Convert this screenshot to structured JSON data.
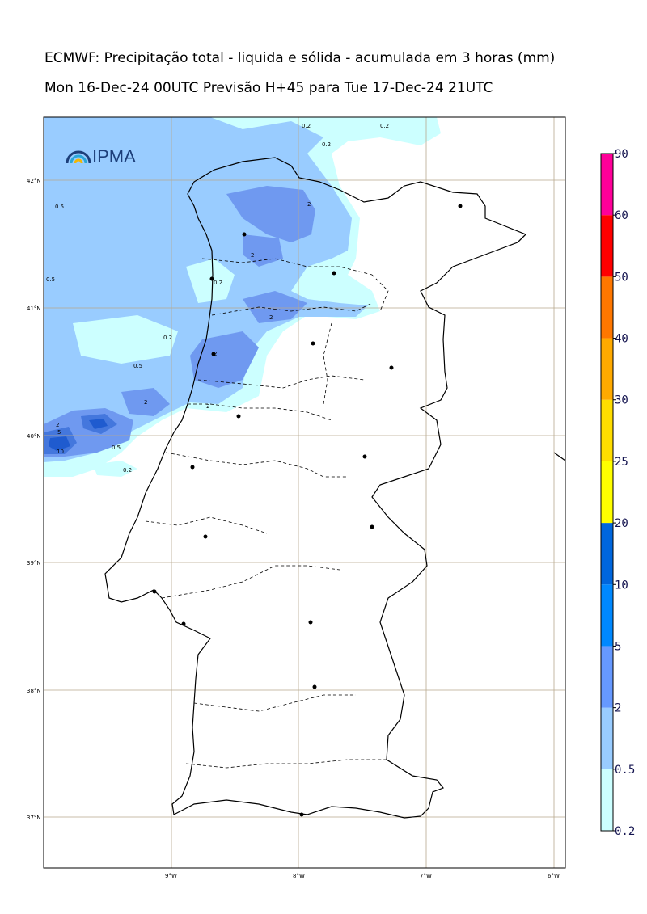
{
  "header": {
    "title_line1": "ECMWF: Precipitação total - liquida e sólida - acumulada em 3 horas (mm)",
    "title_line2": "Mon 16-Dec-24 00UTC Previsão H+45 para Tue 17-Dec-24 21UTC"
  },
  "logo": {
    "text": "IPMA"
  },
  "lat_labels": [
    "42°N",
    "41°N",
    "40°N",
    "39°N",
    "38°N",
    "37°N"
  ],
  "lon_labels": [
    "9°W",
    "8°W",
    "7°W",
    "6°W"
  ],
  "contour_labels": [
    "0.2",
    "0.2",
    "0.5",
    "0.2",
    "2",
    "2",
    "0.5",
    "2",
    "2",
    "0.2",
    "0.2",
    "0.5",
    "2",
    "2",
    "2",
    "5",
    "10",
    "0.5",
    "0.2"
  ],
  "colorbar": {
    "ticks": [
      "0.2",
      "0.5",
      "2",
      "5",
      "10",
      "20",
      "25",
      "30",
      "40",
      "50",
      "60",
      "90"
    ],
    "colors": [
      "#ccffff",
      "#99ccff",
      "#6699ff",
      "#0088ff",
      "#0066dd",
      "#ffff00",
      "#ffdd00",
      "#ffaa00",
      "#ff7700",
      "#ff0000",
      "#ff0099"
    ]
  },
  "map_colors": {
    "level_0_2": "#ccffff",
    "level_0_5": "#99ccff",
    "level_2": "#6699ee",
    "level_5": "#3377dd",
    "level_10": "#1155cc"
  }
}
